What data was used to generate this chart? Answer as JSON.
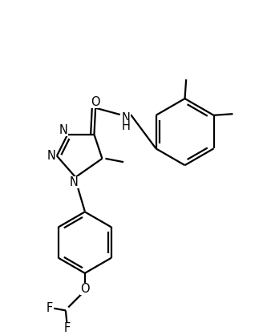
{
  "background_color": "#ffffff",
  "line_color": "#000000",
  "text_color": "#000000",
  "lw": 1.6,
  "fs": 10.5,
  "figsize": [
    3.38,
    4.18
  ],
  "dpi": 100,
  "xlim": [
    0,
    10
  ],
  "ylim": [
    0,
    12.4
  ]
}
